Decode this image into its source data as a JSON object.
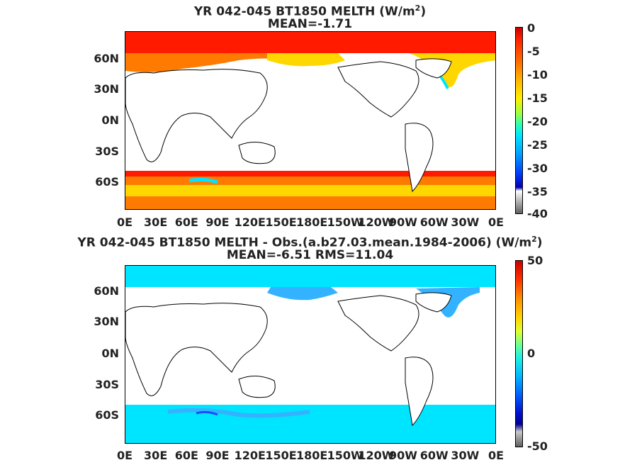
{
  "panels": [
    {
      "title_main": "YR 042-045 BT1850  MELTH (W/m",
      "title_sup": "2",
      "title_tail": ")",
      "subtitle": "MEAN=-1.71",
      "colorbar_ticks": [
        "0",
        "-5",
        "-10",
        "-15",
        "-20",
        "-25",
        "-30",
        "-35",
        "-40"
      ]
    },
    {
      "title_main": "YR 042-045 BT1850 MELTH - Obs.(a.b27.03.mean.1984-2006) (W/m",
      "title_sup": "2",
      "title_tail": ")",
      "subtitle": "MEAN=-6.51 RMS=11.04",
      "colorbar_ticks": [
        "50",
        "0",
        "-50"
      ]
    }
  ],
  "lat_labels": [
    "60N",
    "30N",
    "0N",
    "30S",
    "60S"
  ],
  "lon_labels": [
    "0E",
    "30E",
    "60E",
    "90E",
    "120E",
    "150E",
    "180E",
    "150W",
    "120W",
    "90W",
    "60W",
    "30W",
    "0E"
  ],
  "colors": {
    "ice_red": "#ff1a00",
    "orange": "#ff7a00",
    "yellow": "#ffd700",
    "cyan": "#00e5ff",
    "light_blue": "#33b3ff",
    "blue": "#1a4dff",
    "coast": "#000000"
  }
}
